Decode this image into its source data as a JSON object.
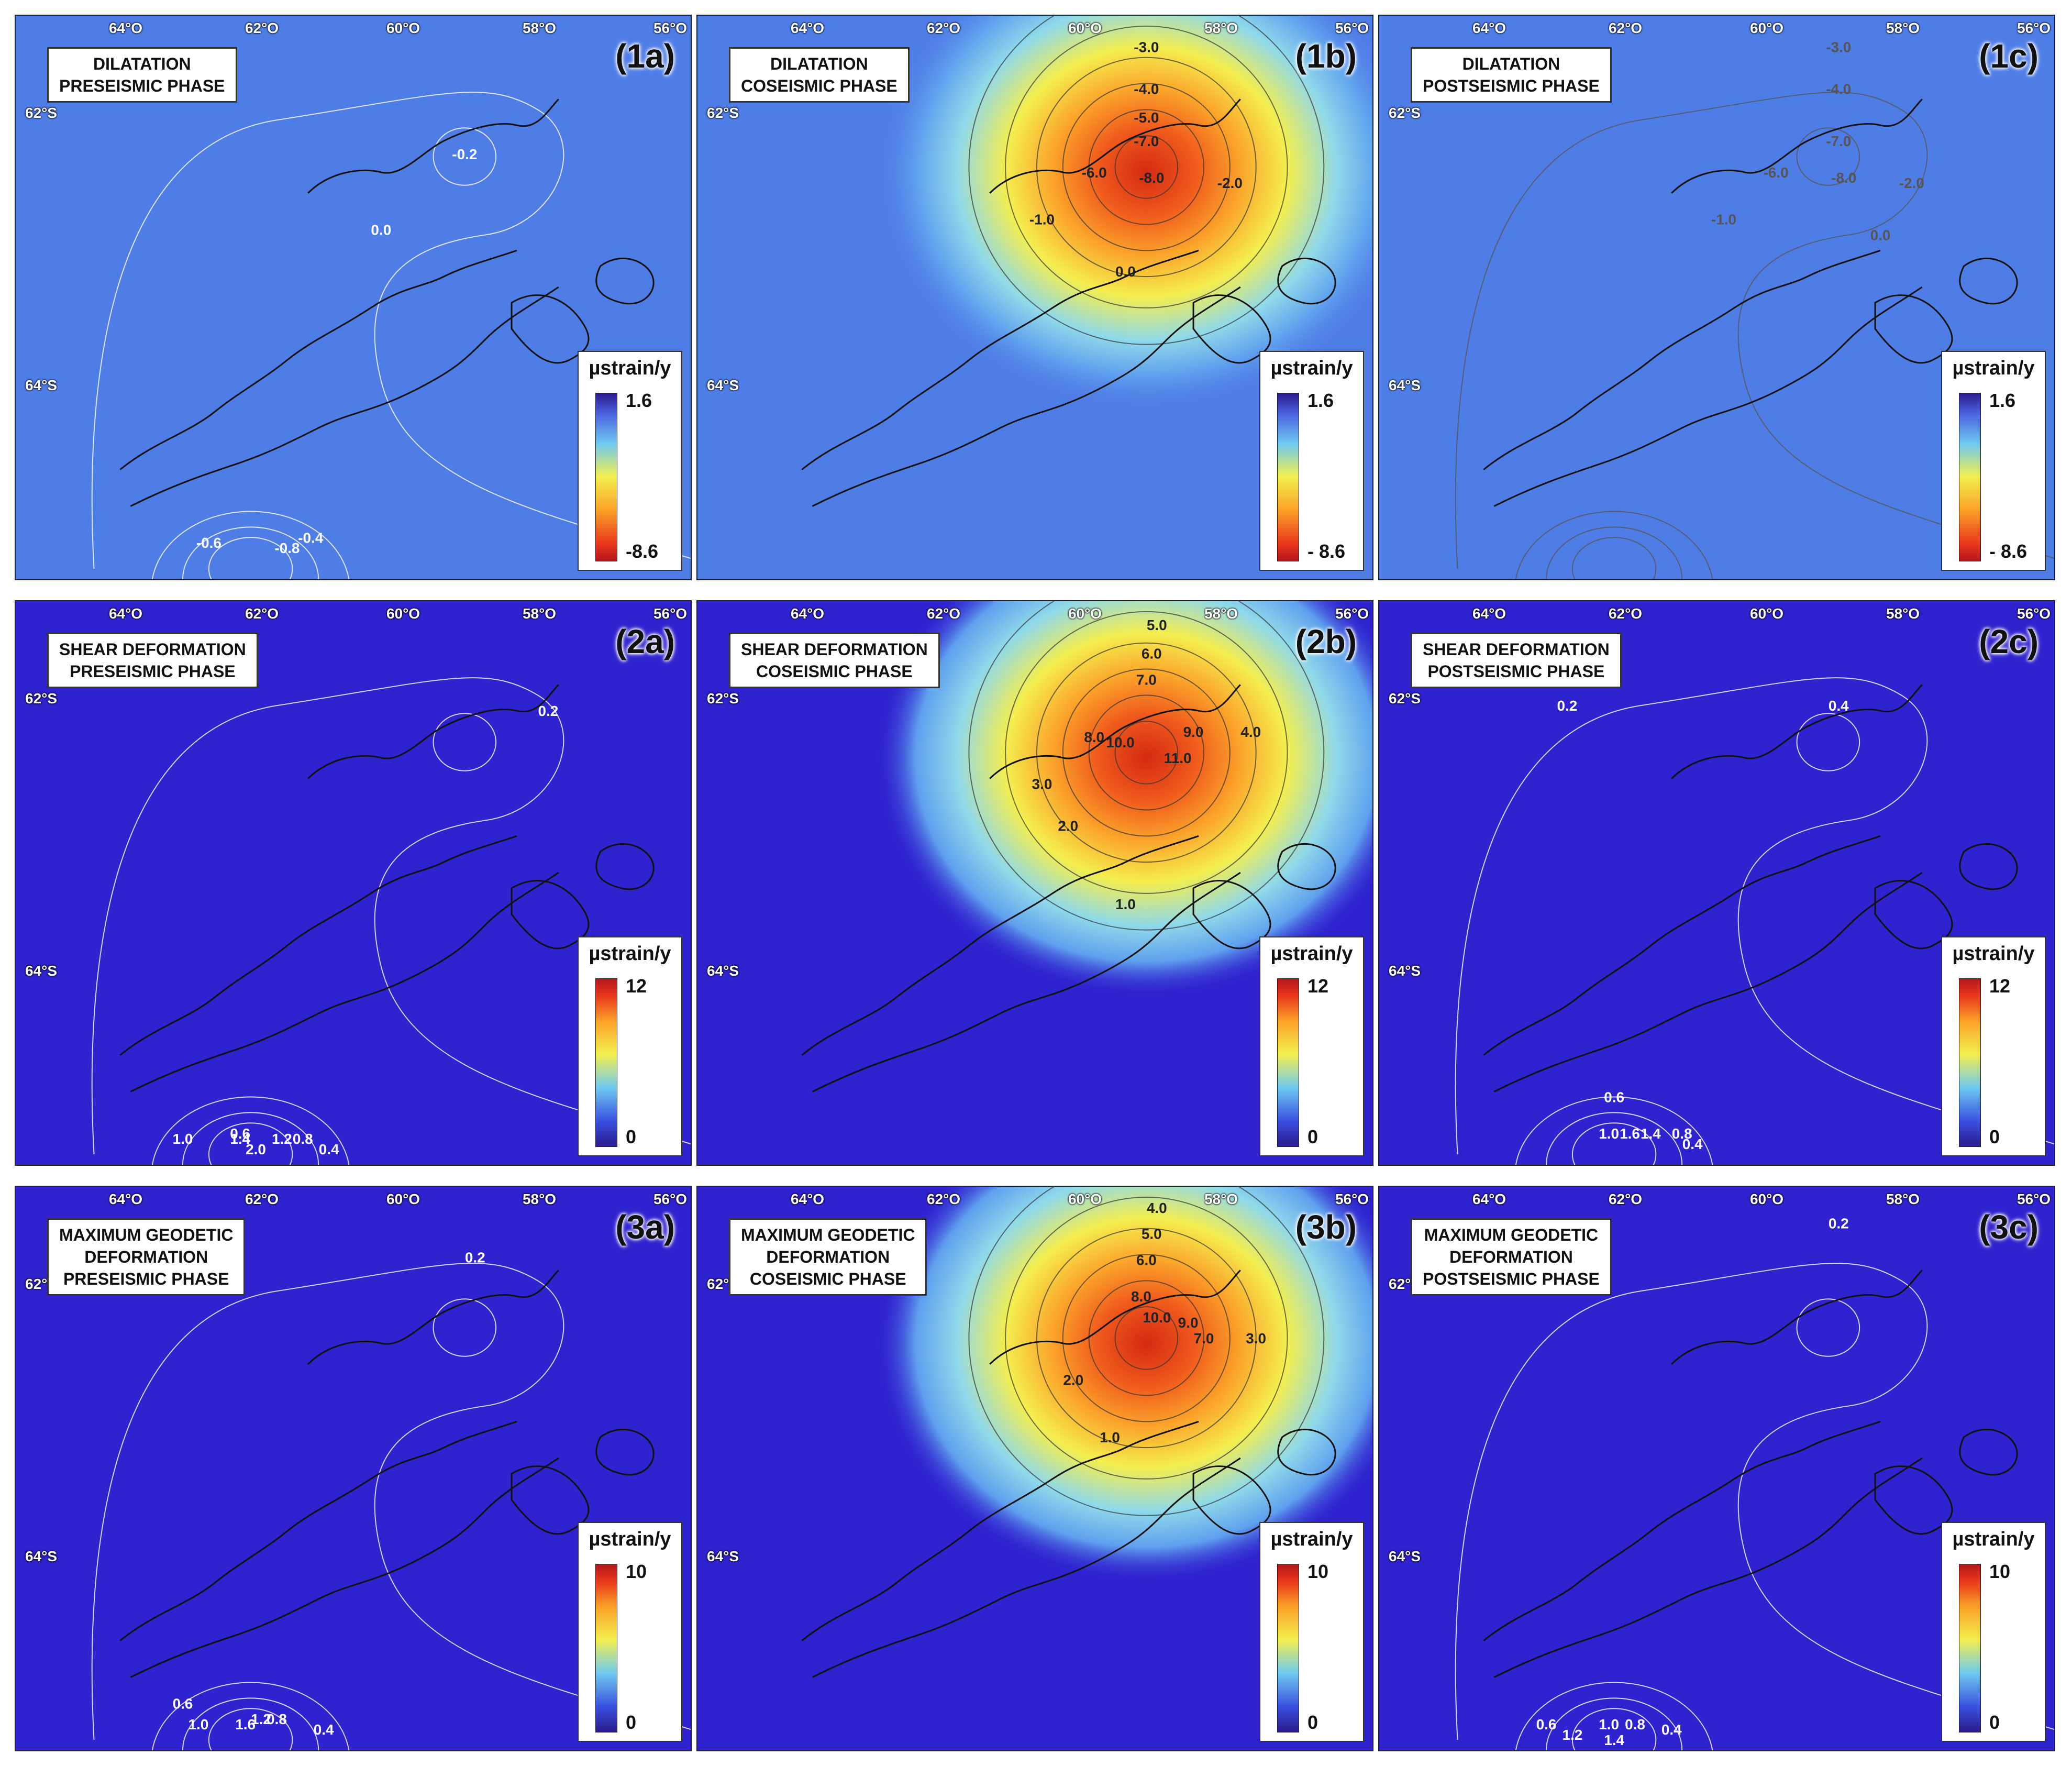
{
  "figure": {
    "lon_labels": [
      "64°O",
      "62°O",
      "60°O",
      "58°O",
      "56°O"
    ],
    "lat_labels": [
      "62°S",
      "64°S"
    ],
    "unit": "µstrain/y"
  },
  "panels": [
    {
      "id": "(1a)",
      "title": [
        "DILATATION",
        "PRESEISMIC PHASE"
      ],
      "scale_max": "1.6",
      "scale_min": "-8.6",
      "palette": "dil",
      "background": "#4f7de6",
      "hotspot": null,
      "contours": [
        {
          "label": "-0.2",
          "color": "#ffffff"
        },
        {
          "label": "0.0",
          "color": "#ffffff"
        },
        {
          "label": "-0.6",
          "color": "#ffffff"
        },
        {
          "label": "-0.8",
          "color": "#ffffff"
        },
        {
          "label": "-0.4",
          "color": "#ffffff"
        }
      ]
    },
    {
      "id": "(1b)",
      "title": [
        "DILATATION",
        "COSEISMIC PHASE"
      ],
      "scale_max": "1.6",
      "scale_min": "- 8.6",
      "palette": "dil",
      "background": "#4f7de6",
      "hotspot": "dil",
      "contours": [
        {
          "label": "-3.0",
          "color": "#222222"
        },
        {
          "label": "-4.0",
          "color": "#222222"
        },
        {
          "label": "-5.0",
          "color": "#222222"
        },
        {
          "label": "-7.0",
          "color": "#222222"
        },
        {
          "label": "-8.0",
          "color": "#222222"
        },
        {
          "label": "-6.0",
          "color": "#222222"
        },
        {
          "label": "-2.0",
          "color": "#222222"
        },
        {
          "label": "-1.0",
          "color": "#222222"
        },
        {
          "label": "0.0",
          "color": "#222222"
        }
      ]
    },
    {
      "id": "(1c)",
      "title": [
        "DILATATION",
        "POSTSEISMIC PHASE"
      ],
      "scale_max": "1.6",
      "scale_min": "- 8.6",
      "palette": "dil",
      "background": "#4f7de6",
      "hotspot": null,
      "contours": [
        {
          "label": "-3.0",
          "color": "#555555"
        },
        {
          "label": "-4.0",
          "color": "#555555"
        },
        {
          "label": "-7.0",
          "color": "#555555"
        },
        {
          "label": "-8.0",
          "color": "#555555"
        },
        {
          "label": "-6.0",
          "color": "#555555"
        },
        {
          "label": "-2.0",
          "color": "#555555"
        },
        {
          "label": "-1.0",
          "color": "#555555"
        },
        {
          "label": "0.0",
          "color": "#555555"
        }
      ]
    },
    {
      "id": "(2a)",
      "title": [
        "SHEAR DEFORMATION",
        "PRESEISMIC PHASE"
      ],
      "scale_max": "12",
      "scale_min": "0",
      "palette": "seq",
      "background": "#2f22cf",
      "hotspot": null,
      "contours": [
        {
          "label": "0.2",
          "color": "#ffffff"
        },
        {
          "label": "0.6",
          "color": "#ffffff"
        },
        {
          "label": "1.0",
          "color": "#ffffff"
        },
        {
          "label": "1.4",
          "color": "#ffffff"
        },
        {
          "label": "1.2",
          "color": "#ffffff"
        },
        {
          "label": "0.8",
          "color": "#ffffff"
        },
        {
          "label": "0.4",
          "color": "#ffffff"
        },
        {
          "label": "2.0",
          "color": "#ffffff"
        }
      ]
    },
    {
      "id": "(2b)",
      "title": [
        "SHEAR DEFORMATION",
        "COSEISMIC PHASE"
      ],
      "scale_max": "12",
      "scale_min": "0",
      "palette": "seq",
      "background": "#2f22cf",
      "hotspot": "seq",
      "contours": [
        {
          "label": "5.0",
          "color": "#222222"
        },
        {
          "label": "6.0",
          "color": "#222222"
        },
        {
          "label": "7.0",
          "color": "#222222"
        },
        {
          "label": "8.0",
          "color": "#222222"
        },
        {
          "label": "10.0",
          "color": "#222222"
        },
        {
          "label": "11.0",
          "color": "#222222"
        },
        {
          "label": "9.0",
          "color": "#222222"
        },
        {
          "label": "4.0",
          "color": "#222222"
        },
        {
          "label": "3.0",
          "color": "#222222"
        },
        {
          "label": "2.0",
          "color": "#222222"
        },
        {
          "label": "1.0",
          "color": "#222222"
        }
      ]
    },
    {
      "id": "(2c)",
      "title": [
        "SHEAR DEFORMATION",
        "POSTSEISMIC PHASE"
      ],
      "scale_max": "12",
      "scale_min": "0",
      "palette": "seq",
      "background": "#2f22cf",
      "hotspot": null,
      "contours": [
        {
          "label": "0.2",
          "color": "#ffffff"
        },
        {
          "label": "0.4",
          "color": "#ffffff"
        },
        {
          "label": "0.6",
          "color": "#ffffff"
        },
        {
          "label": "1.0",
          "color": "#ffffff"
        },
        {
          "label": "1.6",
          "color": "#ffffff"
        },
        {
          "label": "1.4",
          "color": "#ffffff"
        },
        {
          "label": "0.8",
          "color": "#ffffff"
        },
        {
          "label": "0.4",
          "color": "#ffffff"
        }
      ]
    },
    {
      "id": "(3a)",
      "title": [
        "MAXIMUM GEODETIC",
        "DEFORMATION",
        "PRESEISMIC PHASE"
      ],
      "scale_max": "10",
      "scale_min": "0",
      "palette": "seq",
      "background": "#2f22cf",
      "hotspot": null,
      "contours": [
        {
          "label": "0.2",
          "color": "#ffffff"
        },
        {
          "label": "0.6",
          "color": "#ffffff"
        },
        {
          "label": "1.0",
          "color": "#ffffff"
        },
        {
          "label": "1.6",
          "color": "#ffffff"
        },
        {
          "label": "1.2",
          "color": "#ffffff"
        },
        {
          "label": "0.8",
          "color": "#ffffff"
        },
        {
          "label": "0.4",
          "color": "#ffffff"
        }
      ]
    },
    {
      "id": "(3b)",
      "title": [
        "MAXIMUM GEODETIC",
        "DEFORMATION",
        "COSEISMIC PHASE"
      ],
      "scale_max": "10",
      "scale_min": "0",
      "palette": "seq",
      "background": "#2f22cf",
      "hotspot": "seq",
      "contours": [
        {
          "label": "4.0",
          "color": "#222222"
        },
        {
          "label": "5.0",
          "color": "#222222"
        },
        {
          "label": "6.0",
          "color": "#222222"
        },
        {
          "label": "8.0",
          "color": "#222222"
        },
        {
          "label": "10.0",
          "color": "#222222"
        },
        {
          "label": "9.0",
          "color": "#222222"
        },
        {
          "label": "7.0",
          "color": "#222222"
        },
        {
          "label": "3.0",
          "color": "#222222"
        },
        {
          "label": "2.0",
          "color": "#222222"
        },
        {
          "label": "1.0",
          "color": "#222222"
        }
      ]
    },
    {
      "id": "(3c)",
      "title": [
        "MAXIMUM GEODETIC",
        "DEFORMATION",
        "POSTSEISMIC PHASE"
      ],
      "scale_max": "10",
      "scale_min": "0",
      "palette": "seq",
      "background": "#2f22cf",
      "hotspot": null,
      "contours": [
        {
          "label": "0.2",
          "color": "#ffffff"
        },
        {
          "label": "0.6",
          "color": "#ffffff"
        },
        {
          "label": "1.2",
          "color": "#ffffff"
        },
        {
          "label": "1.0",
          "color": "#ffffff"
        },
        {
          "label": "0.8",
          "color": "#ffffff"
        },
        {
          "label": "1.4",
          "color": "#ffffff"
        },
        {
          "label": "0.4",
          "color": "#ffffff"
        }
      ]
    }
  ]
}
